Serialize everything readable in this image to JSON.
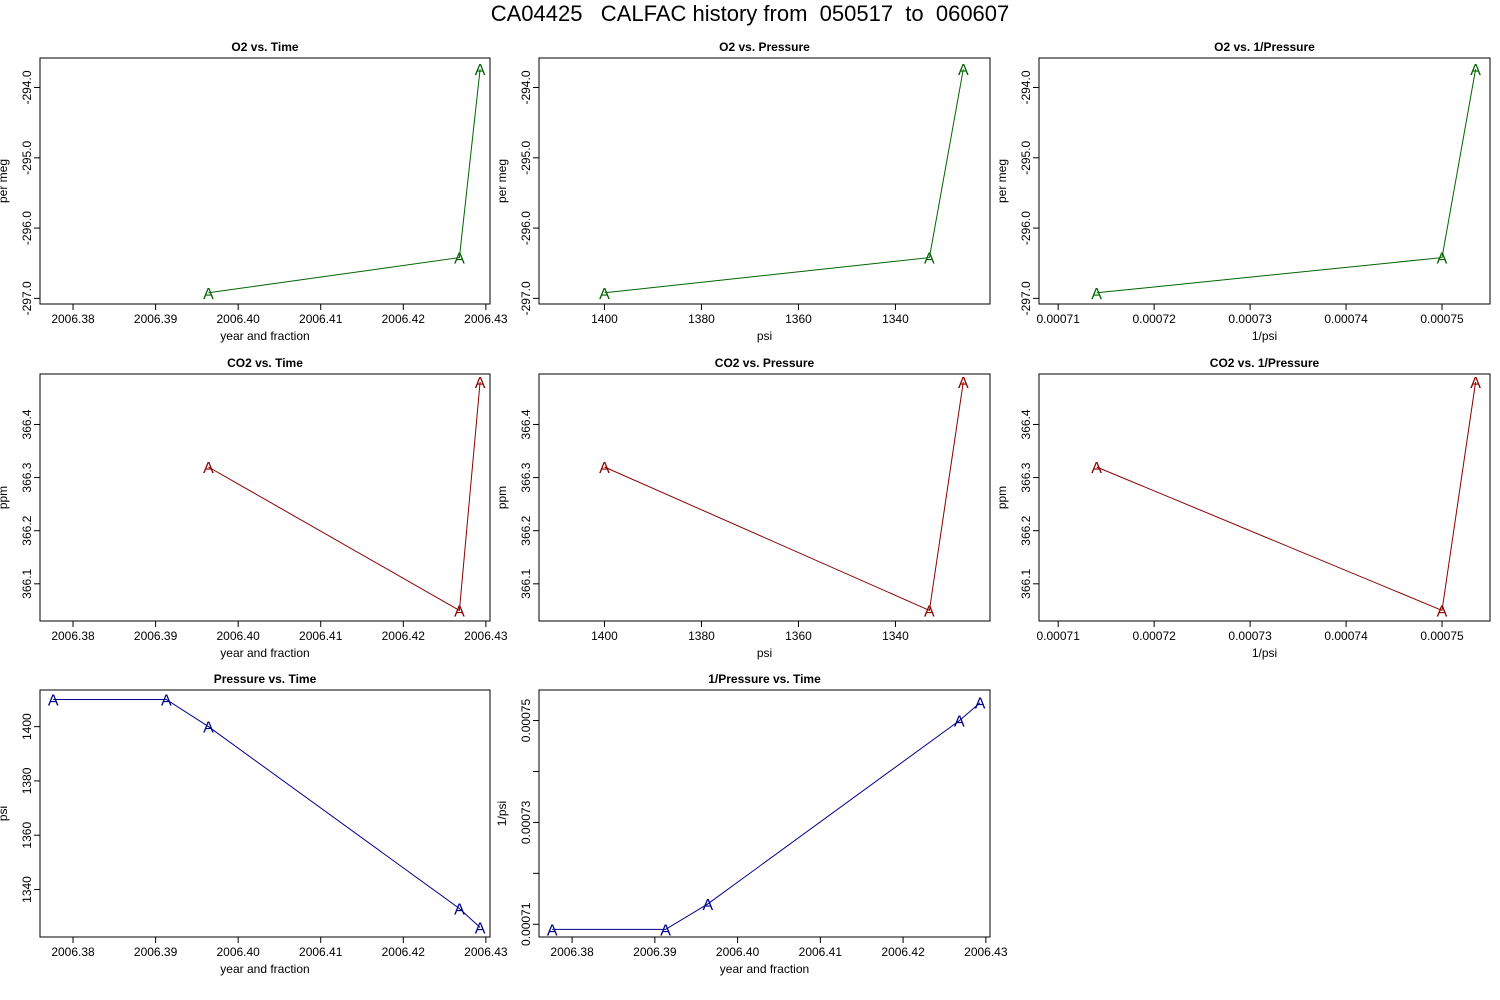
{
  "title": "CA04425   CALFAC history from  050517  to  060607",
  "chart_data": [
    {
      "type": "line",
      "title": "O2 vs. Time",
      "xlabel": "year and fraction",
      "ylabel": "per meg",
      "color": "#006400",
      "marker": "A",
      "xlim": [
        2006.376,
        2006.4305
      ],
      "ylim": [
        -297.08,
        -293.58
      ],
      "xticks": [
        2006.38,
        2006.39,
        2006.4,
        2006.41,
        2006.42,
        2006.43
      ],
      "xtick_labels": [
        "2006.38",
        "2006.39",
        "2006.40",
        "2006.41",
        "2006.42",
        "2006.43"
      ],
      "yticks": [
        -297.0,
        -296.0,
        -295.0,
        -294.0
      ],
      "ytick_labels": [
        "-297.0",
        "-296.0",
        "-295.0",
        "-294.0"
      ],
      "x": [
        2006.3964,
        2006.4268,
        2006.4293
      ],
      "y": [
        -296.92,
        -296.42,
        -293.74
      ]
    },
    {
      "type": "line",
      "title": "O2 vs. Pressure",
      "xlabel": "psi",
      "ylabel": "per meg",
      "color": "#006400",
      "marker": "A",
      "xlim": [
        1413.5,
        1320.5
      ],
      "ylim": [
        -297.08,
        -293.58
      ],
      "xticks": [
        1400,
        1380,
        1360,
        1340
      ],
      "xtick_labels": [
        "1400",
        "1380",
        "1360",
        "1340"
      ],
      "yticks": [
        -297.0,
        -296.0,
        -295.0,
        -294.0
      ],
      "ytick_labels": [
        "-297.0",
        "-296.0",
        "-295.0",
        "-294.0"
      ],
      "x": [
        1400,
        1333,
        1326
      ],
      "y": [
        -296.92,
        -296.42,
        -293.74
      ]
    },
    {
      "type": "line",
      "title": "O2 vs. 1/Pressure",
      "xlabel": "1/psi",
      "ylabel": "per meg",
      "color": "#006400",
      "marker": "A",
      "xlim": [
        0.000708,
        0.000755
      ],
      "ylim": [
        -297.08,
        -293.58
      ],
      "xticks": [
        0.00071,
        0.00072,
        0.00073,
        0.00074,
        0.00075
      ],
      "xtick_labels": [
        "0.00071",
        "0.00072",
        "0.00073",
        "0.00074",
        "0.00075"
      ],
      "yticks": [
        -297.0,
        -296.0,
        -295.0,
        -294.0
      ],
      "ytick_labels": [
        "-297.0",
        "-296.0",
        "-295.0",
        "-294.0"
      ],
      "x": [
        0.000714,
        0.00075,
        0.0007535
      ],
      "y": [
        -296.92,
        -296.42,
        -293.74
      ]
    },
    {
      "type": "line",
      "title": "CO2 vs. Time",
      "xlabel": "year and fraction",
      "ylabel": "ppm",
      "color": "#8b0000",
      "marker": "A",
      "xlim": [
        2006.376,
        2006.4305
      ],
      "ylim": [
        366.03,
        366.495
      ],
      "xticks": [
        2006.38,
        2006.39,
        2006.4,
        2006.41,
        2006.42,
        2006.43
      ],
      "xtick_labels": [
        "2006.38",
        "2006.39",
        "2006.40",
        "2006.41",
        "2006.42",
        "2006.43"
      ],
      "yticks": [
        366.1,
        366.2,
        366.3,
        366.4
      ],
      "ytick_labels": [
        "366.1",
        "366.2",
        "366.3",
        "366.4"
      ],
      "x": [
        2006.3964,
        2006.4268,
        2006.4293
      ],
      "y": [
        366.32,
        366.05,
        366.48
      ]
    },
    {
      "type": "line",
      "title": "CO2 vs. Pressure",
      "xlabel": "psi",
      "ylabel": "ppm",
      "color": "#8b0000",
      "marker": "A",
      "xlim": [
        1413.5,
        1320.5
      ],
      "ylim": [
        366.03,
        366.495
      ],
      "xticks": [
        1400,
        1380,
        1360,
        1340
      ],
      "xtick_labels": [
        "1400",
        "1380",
        "1360",
        "1340"
      ],
      "yticks": [
        366.1,
        366.2,
        366.3,
        366.4
      ],
      "ytick_labels": [
        "366.1",
        "366.2",
        "366.3",
        "366.4"
      ],
      "x": [
        1400,
        1333,
        1326
      ],
      "y": [
        366.32,
        366.05,
        366.48
      ]
    },
    {
      "type": "line",
      "title": "CO2 vs. 1/Pressure",
      "xlabel": "1/psi",
      "ylabel": "ppm",
      "color": "#8b0000",
      "marker": "A",
      "xlim": [
        0.000708,
        0.000755
      ],
      "ylim": [
        366.03,
        366.495
      ],
      "xticks": [
        0.00071,
        0.00072,
        0.00073,
        0.00074,
        0.00075
      ],
      "xtick_labels": [
        "0.00071",
        "0.00072",
        "0.00073",
        "0.00074",
        "0.00075"
      ],
      "yticks": [
        366.1,
        366.2,
        366.3,
        366.4
      ],
      "ytick_labels": [
        "366.1",
        "366.2",
        "366.3",
        "366.4"
      ],
      "x": [
        0.000714,
        0.00075,
        0.0007535
      ],
      "y": [
        366.32,
        366.05,
        366.48
      ]
    },
    {
      "type": "line",
      "title": "Pressure vs. Time",
      "xlabel": "year and fraction",
      "ylabel": "psi",
      "color": "#00008b",
      "marker": "A",
      "xlim": [
        2006.376,
        2006.4305
      ],
      "ylim": [
        1322.5,
        1413.5
      ],
      "xticks": [
        2006.38,
        2006.39,
        2006.4,
        2006.41,
        2006.42,
        2006.43
      ],
      "xtick_labels": [
        "2006.38",
        "2006.39",
        "2006.40",
        "2006.41",
        "2006.42",
        "2006.43"
      ],
      "yticks": [
        1340,
        1360,
        1380,
        1400
      ],
      "ytick_labels": [
        "1340",
        "1360",
        "1380",
        "1400"
      ],
      "x": [
        2006.3776,
        2006.3913,
        2006.3964,
        2006.4268,
        2006.4293
      ],
      "y": [
        1410,
        1410,
        1400,
        1333,
        1326
      ]
    },
    {
      "type": "line",
      "title": "1/Pressure vs. Time",
      "xlabel": "year and fraction",
      "ylabel": "1/psi",
      "color": "#00008b",
      "marker": "A",
      "xlim": [
        2006.376,
        2006.4305
      ],
      "ylim": [
        0.0007075,
        0.000756
      ],
      "xticks": [
        2006.38,
        2006.39,
        2006.4,
        2006.41,
        2006.42,
        2006.43
      ],
      "xtick_labels": [
        "2006.38",
        "2006.39",
        "2006.40",
        "2006.41",
        "2006.42",
        "2006.43"
      ],
      "yticks": [
        0.00071,
        0.00072,
        0.00073,
        0.00074,
        0.00075
      ],
      "ytick_labels": [
        "0.00071",
        "",
        "0.00073",
        "",
        "0.00075"
      ],
      "x": [
        2006.3776,
        2006.3913,
        2006.3964,
        2006.4268,
        2006.4293
      ],
      "y": [
        0.000709,
        0.000709,
        0.000714,
        0.00075,
        0.0007535
      ]
    }
  ]
}
